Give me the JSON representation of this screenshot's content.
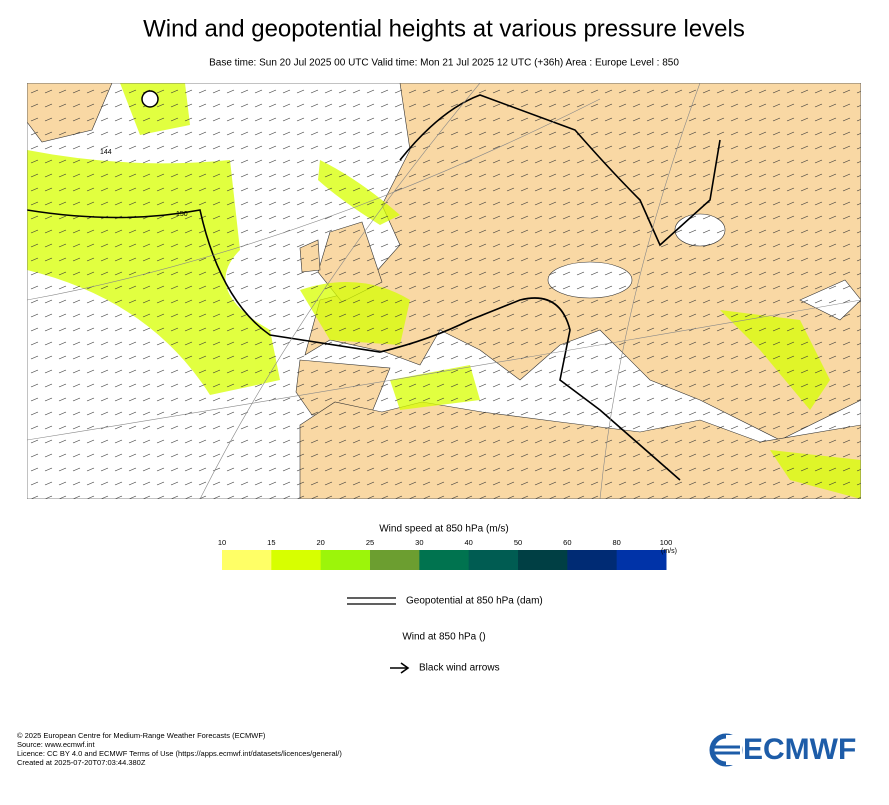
{
  "title": "Wind and geopotential heights at various pressure levels",
  "subtitle": "Base time: Sun 20 Jul 2025 00 UTC Valid time: Mon 21 Jul 2025 12 UTC (+36h) Area : Europe Level : 850",
  "map": {
    "contour_labels": [
      "150",
      "144"
    ]
  },
  "colorbar": {
    "title": "Wind speed at 850 hPa (m/s)",
    "unit": "(m/s)",
    "ticks": [
      10,
      15,
      20,
      25,
      30,
      40,
      50,
      60,
      80,
      100
    ],
    "colors": [
      "#ffff66",
      "#d7ff00",
      "#9cf50a",
      "#6c9e30",
      "#00734f",
      "#005c52",
      "#003f44",
      "#002b74",
      "#0033a8"
    ]
  },
  "legend": {
    "geopotential": "Geopotential at 850 hPa (dam)",
    "wind": "Wind at 850 hPa ()",
    "arrows": "Black wind arrows"
  },
  "footer": [
    "© 2025 European Centre for Medium-Range Weather Forecasts (ECMWF)",
    "Source: www.ecmwf.int",
    "Licence: CC BY 4.0 and ECMWF Terms of Use (https://apps.ecmwf.int/datasets/licences/general/)",
    "Created at 2025-07-20T07:03:44.380Z"
  ],
  "logo": "ECMWF"
}
